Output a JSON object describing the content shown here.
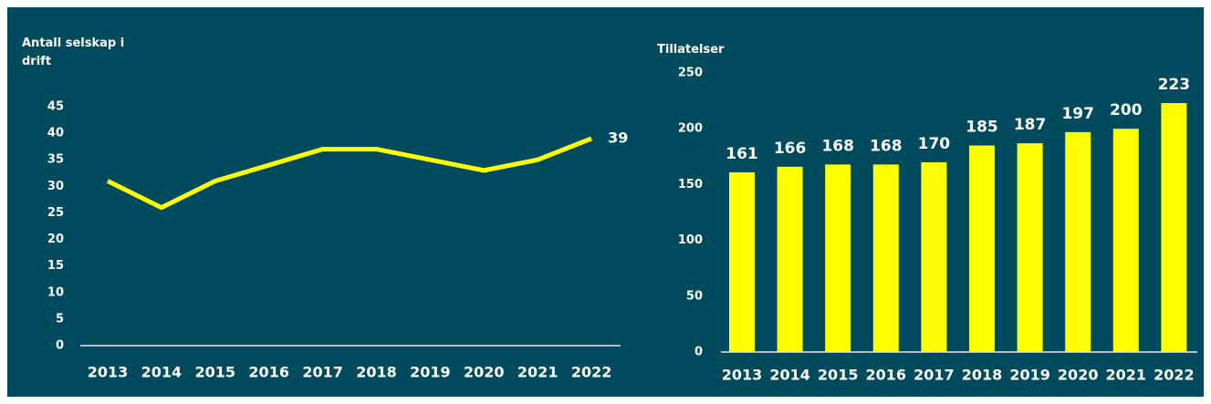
{
  "chart_data": [
    {
      "type": "line",
      "title": "Antall selskap i drift",
      "categories": [
        "2013",
        "2014",
        "2015",
        "2016",
        "2017",
        "2018",
        "2019",
        "2020",
        "2021",
        "2022"
      ],
      "values": [
        31,
        26,
        31,
        34,
        37,
        37,
        35,
        33,
        35,
        39
      ],
      "value_labels": [
        null,
        null,
        null,
        null,
        null,
        null,
        null,
        null,
        null,
        "39"
      ],
      "color": "#ffff00",
      "ylim": [
        0,
        45
      ],
      "yticks": [
        0,
        5,
        10,
        15,
        20,
        25,
        30,
        35,
        40,
        45
      ],
      "grid": false
    },
    {
      "type": "bar",
      "title": "Tillatelser",
      "categories": [
        "2013",
        "2014",
        "2015",
        "2016",
        "2017",
        "2018",
        "2019",
        "2020",
        "2021",
        "2022"
      ],
      "values": [
        161,
        166,
        168,
        168,
        170,
        185,
        187,
        197,
        200,
        223
      ],
      "color": "#ffff00",
      "ylim": [
        0,
        250
      ],
      "yticks": [
        0,
        50,
        100,
        150,
        200,
        250
      ],
      "grid": false
    }
  ]
}
